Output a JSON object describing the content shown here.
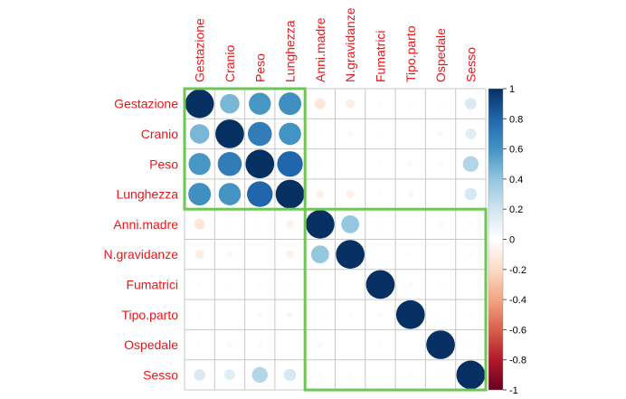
{
  "chart_data": {
    "type": "heatmap",
    "variables": [
      "Gestazione",
      "Cranio",
      "Peso",
      "Lunghezza",
      "Anni.madre",
      "N.gravidanze",
      "Fumatrici",
      "Tipo.parto",
      "Ospedale",
      "Sesso"
    ],
    "matrix": [
      [
        1.0,
        0.46,
        0.59,
        0.62,
        -0.14,
        -0.1,
        -0.03,
        0.02,
        0.02,
        0.16
      ],
      [
        0.46,
        1.0,
        0.7,
        0.6,
        0.02,
        0.04,
        -0.01,
        0.0,
        0.04,
        0.14
      ],
      [
        0.59,
        0.7,
        1.0,
        0.8,
        -0.02,
        0.0,
        -0.02,
        -0.04,
        0.03,
        0.3
      ],
      [
        0.62,
        0.6,
        0.8,
        1.0,
        -0.08,
        -0.08,
        -0.02,
        -0.05,
        0.0,
        0.18
      ],
      [
        -0.14,
        0.02,
        -0.02,
        -0.08,
        1.0,
        0.39,
        -0.02,
        -0.01,
        0.04,
        -0.03
      ],
      [
        -0.1,
        0.04,
        0.0,
        -0.08,
        0.39,
        1.0,
        0.01,
        0.02,
        0.0,
        -0.03
      ],
      [
        -0.03,
        -0.01,
        -0.02,
        -0.02,
        -0.02,
        0.01,
        1.0,
        0.03,
        0.02,
        0.0
      ],
      [
        0.02,
        0.0,
        -0.04,
        -0.05,
        -0.01,
        0.02,
        0.03,
        1.0,
        0.01,
        0.02
      ],
      [
        0.02,
        0.04,
        0.03,
        0.0,
        0.04,
        0.0,
        0.02,
        0.01,
        1.0,
        0.02
      ],
      [
        0.16,
        0.14,
        0.3,
        0.18,
        -0.03,
        -0.03,
        0.0,
        0.02,
        0.02,
        1.0
      ]
    ],
    "clusters": [
      {
        "variables": [
          "Gestazione",
          "Cranio",
          "Peso",
          "Lunghezza"
        ]
      },
      {
        "variables": [
          "Anni.madre",
          "N.gravidanze",
          "Fumatrici",
          "Tipo.parto",
          "Ospedale",
          "Sesso"
        ]
      }
    ],
    "colorbar": {
      "range": [
        -1,
        1
      ],
      "ticks": [
        "1",
        "0.8",
        "0.6",
        "0.4",
        "0.2",
        "0",
        "-0.2",
        "-0.4",
        "-0.6",
        "-0.8",
        "-1"
      ]
    },
    "colors": {
      "label": "#e8171b",
      "cluster_box": "#6ec654",
      "grid": "#c8c8c8"
    }
  }
}
